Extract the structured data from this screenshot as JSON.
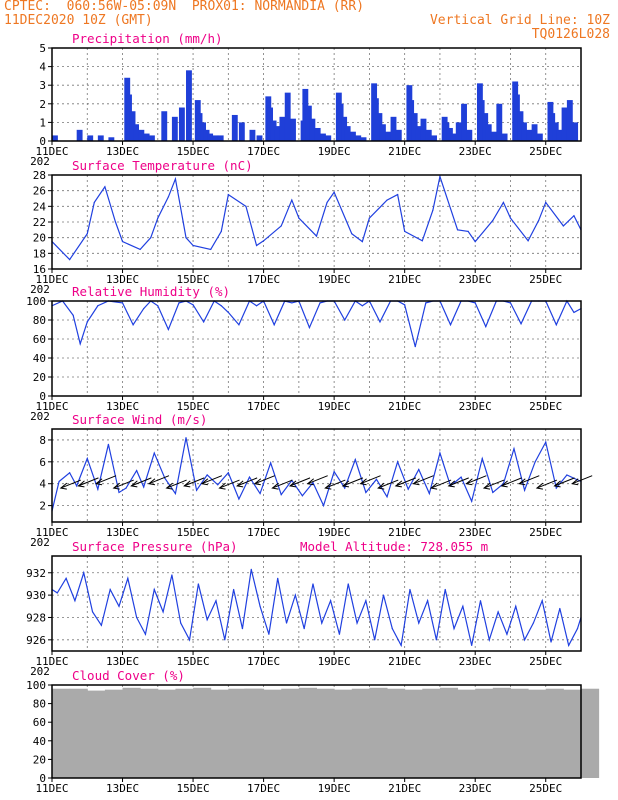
{
  "header": {
    "line1_left": "CPTEC:  060:56W-05:09N  PROX01: NORMANDIA (RR)",
    "line2_left": "11DEC2020 10Z (GMT)",
    "line2_right": "Vertical Grid Line: 10Z",
    "line3_right": "TQ0126L028",
    "color": "#ee7722"
  },
  "chart_data": [
    {
      "id": "precipitation",
      "type": "bar",
      "title": "Precipitation (mm/h)",
      "xlabel": "",
      "ylabel": "",
      "x_tick_labels": [
        "11DEC",
        "13DEC",
        "15DEC",
        "17DEC",
        "19DEC",
        "21DEC",
        "23DEC",
        "25DEC"
      ],
      "year_label": "202",
      "ylim": [
        0,
        5
      ],
      "y_ticks": [
        0,
        1,
        2,
        3,
        4,
        5
      ],
      "grid": true,
      "color": "#1f3fd8",
      "days": [
        0,
        0.7,
        1,
        1.3,
        1.6,
        2.05,
        2.1,
        2.2,
        2.3,
        2.45,
        2.6,
        2.75,
        3.1,
        3.4,
        3.6,
        3.8,
        4.05,
        4.1,
        4.2,
        4.3,
        4.4,
        4.55,
        4.7,
        5.1,
        5.3,
        5.6,
        5.8,
        6.05,
        6.1,
        6.2,
        6.3,
        6.45,
        6.6,
        6.75,
        7.05,
        7.1,
        7.2,
        7.3,
        7.45,
        7.6,
        7.75,
        8.05,
        8.1,
        8.2,
        8.3,
        8.45,
        8.6,
        8.75,
        9.05,
        9.1,
        9.2,
        9.3,
        9.45,
        9.6,
        9.75,
        10.05,
        10.1,
        10.2,
        10.3,
        10.45,
        10.6,
        10.75,
        11.05,
        11.1,
        11.2,
        11.3,
        11.45,
        11.6,
        11.75,
        12.05,
        12.1,
        12.2,
        12.3,
        12.45,
        12.6,
        12.75,
        13.05,
        13.1,
        13.2,
        13.3,
        13.45,
        13.6,
        13.75,
        14.05,
        14.1,
        14.2,
        14.3,
        14.45,
        14.6,
        14.75
      ],
      "values": [
        0.3,
        0.6,
        0.3,
        0.3,
        0.2,
        3.4,
        2.5,
        1.6,
        0.9,
        0.6,
        0.4,
        0.3,
        1.6,
        1.3,
        1.8,
        3.8,
        2.2,
        1.5,
        1.0,
        0.6,
        0.4,
        0.3,
        0.3,
        1.4,
        1.0,
        0.6,
        0.3,
        2.4,
        1.8,
        1.1,
        0.8,
        1.3,
        2.6,
        1.2,
        1.1,
        2.8,
        1.9,
        1.2,
        0.7,
        0.4,
        0.3,
        2.6,
        2.0,
        1.3,
        0.8,
        0.5,
        0.3,
        0.2,
        3.1,
        2.3,
        1.5,
        0.9,
        0.5,
        1.3,
        0.6,
        3.0,
        2.2,
        1.5,
        0.8,
        1.2,
        0.6,
        0.3,
        1.3,
        1.0,
        0.7,
        0.4,
        1.0,
        2.0,
        0.6,
        3.1,
        2.2,
        1.5,
        0.9,
        0.5,
        2.0,
        0.4,
        3.2,
        2.5,
        1.6,
        1.0,
        0.6,
        0.9,
        0.4,
        2.1,
        1.5,
        1.0,
        0.6,
        1.8,
        2.2,
        1.0
      ]
    },
    {
      "id": "temperature",
      "type": "line",
      "title": "Surface Temperature (nC)",
      "xlabel": "",
      "ylabel": "",
      "x_tick_labels": [
        "11DEC",
        "13DEC",
        "15DEC",
        "17DEC",
        "19DEC",
        "21DEC",
        "23DEC",
        "25DEC"
      ],
      "year_label": "202",
      "ylim": [
        16,
        28
      ],
      "y_ticks": [
        16,
        18,
        20,
        22,
        24,
        26,
        28
      ],
      "grid": true,
      "color": "#2040e0",
      "days": [
        0,
        0.5,
        1,
        1.2,
        1.5,
        1.8,
        2,
        2.5,
        2.8,
        3,
        3.3,
        3.5,
        3.8,
        4,
        4.5,
        4.8,
        5,
        5.5,
        5.8,
        6,
        6.5,
        6.8,
        7,
        7.5,
        7.8,
        8,
        8.5,
        8.8,
        9,
        9.5,
        9.8,
        10,
        10.5,
        10.8,
        11,
        11.5,
        11.8,
        12,
        12.5,
        12.8,
        13,
        13.5,
        13.8,
        14,
        14.5,
        14.8,
        15
      ],
      "values": [
        19.5,
        17.2,
        20.5,
        24.5,
        26.5,
        22,
        19.5,
        18.5,
        20,
        22.5,
        25.2,
        27.5,
        20,
        19,
        18.5,
        20.8,
        25.5,
        24,
        19,
        19.6,
        21.5,
        24.8,
        22.5,
        20.2,
        24.5,
        25.8,
        20.5,
        19.5,
        22.5,
        24.8,
        25.5,
        20.8,
        19.6,
        23.5,
        27.8,
        21.0,
        20.8,
        19.5,
        22.2,
        24.5,
        22.5,
        19.6,
        22.2,
        24.5,
        21.5,
        22.8,
        21
      ]
    },
    {
      "id": "humidity",
      "type": "line",
      "title": "Relative Humidity (%)",
      "xlabel": "",
      "ylabel": "",
      "x_tick_labels": [
        "11DEC",
        "13DEC",
        "15DEC",
        "17DEC",
        "19DEC",
        "21DEC",
        "23DEC",
        "25DEC"
      ],
      "year_label": "202",
      "ylim": [
        0,
        100
      ],
      "y_ticks": [
        0,
        20,
        40,
        60,
        80,
        100
      ],
      "grid": true,
      "color": "#2040e0",
      "days": [
        0,
        0.3,
        0.6,
        0.8,
        1,
        1.3,
        1.6,
        2,
        2.3,
        2.6,
        2.8,
        3,
        3.3,
        3.6,
        3.8,
        4,
        4.3,
        4.6,
        4.8,
        5,
        5.3,
        5.6,
        5.8,
        6,
        6.3,
        6.6,
        6.8,
        7,
        7.3,
        7.6,
        7.8,
        8,
        8.3,
        8.6,
        8.8,
        9,
        9.3,
        9.6,
        9.8,
        10,
        10.3,
        10.6,
        10.8,
        11,
        11.3,
        11.6,
        11.8,
        12,
        12.3,
        12.6,
        12.8,
        13,
        13.3,
        13.6,
        13.8,
        14,
        14.3,
        14.6,
        14.8,
        15
      ],
      "values": [
        95,
        100,
        85,
        55,
        78,
        95,
        100,
        98,
        75,
        92,
        100,
        95,
        70,
        98,
        100,
        96,
        78,
        100,
        95,
        88,
        75,
        100,
        95,
        100,
        75,
        100,
        98,
        100,
        72,
        98,
        100,
        100,
        80,
        100,
        95,
        100,
        78,
        100,
        100,
        96,
        52,
        98,
        100,
        100,
        75,
        100,
        100,
        98,
        73,
        100,
        100,
        98,
        76,
        100,
        100,
        100,
        75,
        100,
        88,
        92
      ]
    },
    {
      "id": "wind",
      "type": "line",
      "title": "Surface Wind (m/s)",
      "xlabel": "",
      "ylabel": "",
      "x_tick_labels": [
        "11DEC",
        "13DEC",
        "15DEC",
        "17DEC",
        "19DEC",
        "21DEC",
        "23DEC",
        "25DEC"
      ],
      "year_label": "202",
      "ylim": [
        0.5,
        9
      ],
      "y_ticks": [
        2,
        4,
        6,
        8
      ],
      "grid": true,
      "color": "#2040e0",
      "days": [
        0,
        0.2,
        0.5,
        0.7,
        1,
        1.3,
        1.6,
        1.9,
        2.1,
        2.4,
        2.6,
        2.9,
        3.2,
        3.5,
        3.8,
        4.1,
        4.4,
        4.7,
        5,
        5.3,
        5.6,
        5.9,
        6.2,
        6.5,
        6.8,
        7.1,
        7.4,
        7.7,
        8,
        8.3,
        8.6,
        8.9,
        9.2,
        9.5,
        9.8,
        10.1,
        10.4,
        10.7,
        11,
        11.3,
        11.6,
        11.9,
        12.2,
        12.5,
        12.8,
        13.1,
        13.4,
        13.7,
        14,
        14.3,
        14.6,
        15
      ],
      "values": [
        1.5,
        4.2,
        5.0,
        3.8,
        6.3,
        3.5,
        7.6,
        3.2,
        3.6,
        5.2,
        3.7,
        6.8,
        4.5,
        3.1,
        8.2,
        3.4,
        4.8,
        3.9,
        5.0,
        2.6,
        4.6,
        3.1,
        5.9,
        3.0,
        4.3,
        2.9,
        4.1,
        2.0,
        5.1,
        3.6,
        6.2,
        3.2,
        4.4,
        2.8,
        6.0,
        3.5,
        5.3,
        3.1,
        6.8,
        3.8,
        4.6,
        2.4,
        6.3,
        3.2,
        4.0,
        7.2,
        3.4,
        6.0,
        7.8,
        3.6,
        4.8,
        4.2
      ]
    },
    {
      "id": "pressure",
      "type": "line",
      "title": "Surface Pressure (hPa)",
      "annotation": "Model Altitude: 728.055 m",
      "xlabel": "",
      "ylabel": "",
      "x_tick_labels": [
        "11DEC",
        "13DEC",
        "15DEC",
        "17DEC",
        "19DEC",
        "21DEC",
        "23DEC",
        "25DEC"
      ],
      "year_label": "202",
      "ylim": [
        925,
        933.5
      ],
      "y_ticks": [
        926,
        928,
        930,
        932
      ],
      "grid": true,
      "color": "#2040e0",
      "days": [
        0,
        0.15,
        0.4,
        0.65,
        0.9,
        1.15,
        1.4,
        1.65,
        1.9,
        2.15,
        2.4,
        2.65,
        2.9,
        3.15,
        3.4,
        3.65,
        3.9,
        4.15,
        4.4,
        4.65,
        4.9,
        5.15,
        5.4,
        5.65,
        5.9,
        6.15,
        6.4,
        6.65,
        6.9,
        7.15,
        7.4,
        7.65,
        7.9,
        8.15,
        8.4,
        8.65,
        8.9,
        9.15,
        9.4,
        9.65,
        9.9,
        10.15,
        10.4,
        10.65,
        10.9,
        11.15,
        11.4,
        11.65,
        11.9,
        12.15,
        12.4,
        12.65,
        12.9,
        13.15,
        13.4,
        13.65,
        13.9,
        14.15,
        14.4,
        14.65,
        14.9,
        15
      ],
      "values": [
        930.5,
        930.2,
        931.5,
        929.5,
        932.0,
        928.5,
        927.3,
        930.5,
        929.0,
        931.5,
        928.0,
        926.5,
        930.5,
        928.5,
        931.8,
        927.5,
        926.0,
        931.0,
        927.8,
        929.5,
        926.0,
        930.5,
        927.0,
        932.3,
        929.0,
        926.5,
        931.5,
        927.5,
        930.0,
        927.0,
        931.0,
        927.5,
        929.5,
        926.5,
        931.0,
        927.5,
        929.5,
        926.0,
        930.0,
        927.0,
        925.5,
        930.5,
        927.5,
        929.5,
        926.0,
        930.5,
        927.0,
        929.0,
        925.5,
        929.5,
        926.0,
        928.5,
        926.5,
        929.0,
        926.0,
        927.5,
        929.5,
        925.8,
        928.8,
        925.5,
        927.0,
        928.0
      ]
    },
    {
      "id": "cloud",
      "type": "bar",
      "title": "Cloud Cover (%)",
      "xlabel": "",
      "ylabel": "",
      "x_tick_labels": [
        "11DEC",
        "13DEC",
        "15DEC",
        "17DEC",
        "19DEC",
        "21DEC",
        "23DEC",
        "25DEC"
      ],
      "year_label": "",
      "ylim": [
        0,
        100
      ],
      "y_ticks": [
        0,
        20,
        40,
        60,
        80,
        100
      ],
      "grid": true,
      "color": "#aaaaaa",
      "days": [
        0,
        0.5,
        1,
        1.5,
        2,
        2.5,
        3,
        3.5,
        4,
        4.5,
        5,
        5.5,
        5.4,
        5.45,
        6,
        6.5,
        7,
        7.5,
        8,
        8.5,
        9,
        9.5,
        10,
        10.05,
        10.1,
        10.5,
        11,
        11.5,
        12,
        12.5,
        13,
        13.5,
        14,
        14.5,
        15
      ],
      "values": [
        96,
        96,
        94,
        95,
        97,
        96,
        95,
        96,
        97,
        95,
        96,
        96,
        2,
        96,
        95,
        96,
        97,
        96,
        95,
        96,
        97,
        96,
        95,
        50,
        92,
        96,
        97,
        95,
        96,
        97,
        96,
        95,
        96,
        95,
        96
      ]
    }
  ]
}
